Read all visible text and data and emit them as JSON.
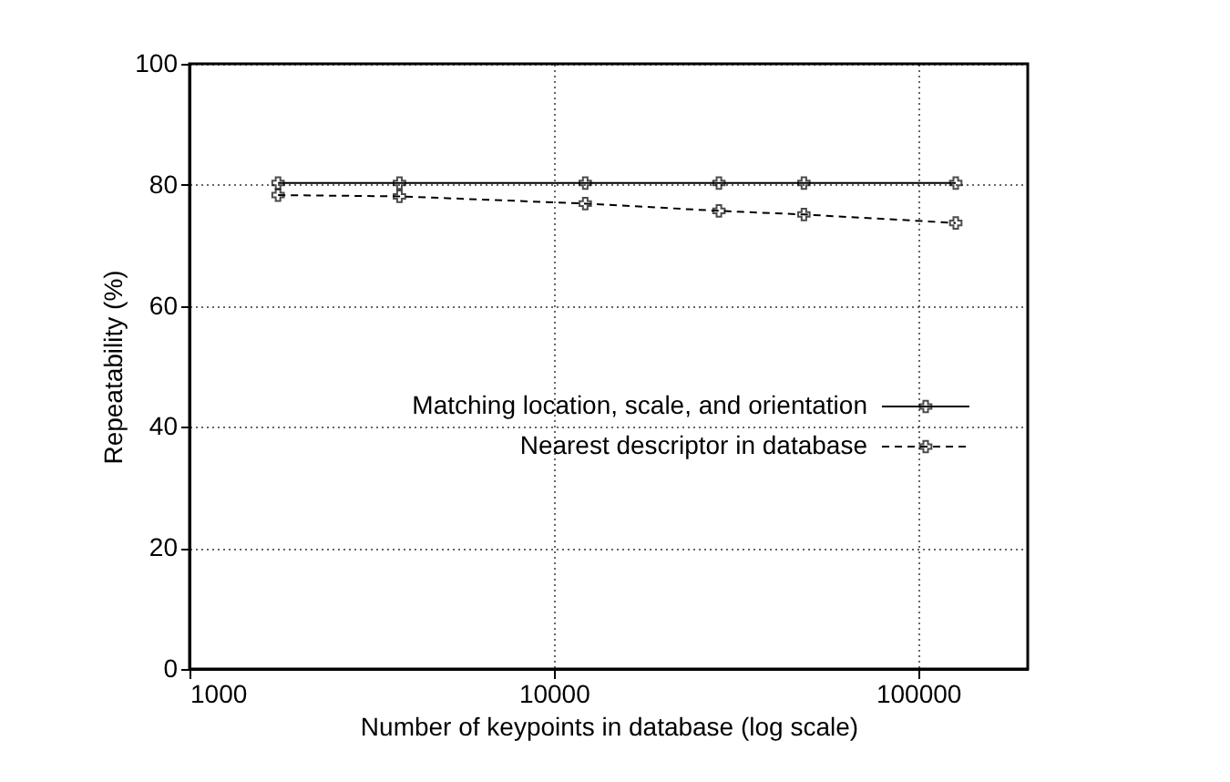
{
  "chart_data": {
    "type": "line",
    "xlabel": "Number of keypoints in database (log scale)",
    "ylabel": "Repeatability (%)",
    "log": "x",
    "xlim": [
      1000,
      200000
    ],
    "xticks": [
      1000,
      10000,
      100000
    ],
    "ylim": [
      0,
      100
    ],
    "yticks": [
      0,
      20,
      40,
      60,
      80,
      100
    ],
    "grid": true,
    "legend": "right",
    "marker": "cross",
    "series": [
      {
        "name": "Matching location, scale, and orientation",
        "color": "#000000",
        "line_style": "solid",
        "x": [
          1750,
          3770,
          12200,
          28400,
          48600,
          126900
        ],
        "values": [
          80.3,
          80.3,
          80.3,
          80.3,
          80.3,
          80.3
        ]
      },
      {
        "name": "Nearest descriptor in database",
        "color": "#000000",
        "line_style": "dashed",
        "x": [
          1750,
          3770,
          12200,
          28400,
          48600,
          126900
        ],
        "values": [
          78.3,
          78.1,
          76.9,
          75.7,
          75.1,
          73.7
        ]
      }
    ]
  }
}
